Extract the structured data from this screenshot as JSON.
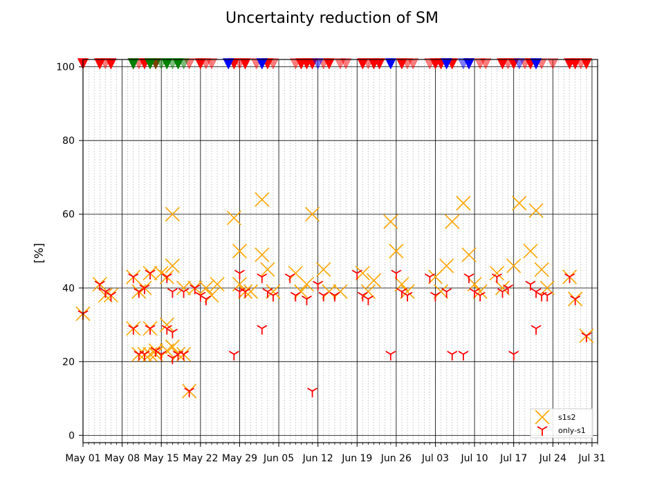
{
  "chart_data": {
    "type": "scatter",
    "title": "Uncertainty reduction of SM",
    "ylabel": "[%]",
    "xlabel": "",
    "xlim": [
      "2019-05-01",
      "2019-08-01"
    ],
    "ylim": [
      -2,
      102
    ],
    "yticks": [
      0,
      20,
      40,
      60,
      80,
      100
    ],
    "xticks": [
      {
        "date": "2019-05-01",
        "label": "May 01"
      },
      {
        "date": "2019-05-08",
        "label": "May 08"
      },
      {
        "date": "2019-05-15",
        "label": "May 15"
      },
      {
        "date": "2019-05-22",
        "label": "May 22"
      },
      {
        "date": "2019-05-29",
        "label": "May 29"
      },
      {
        "date": "2019-06-05",
        "label": "Jun 05"
      },
      {
        "date": "2019-06-12",
        "label": "Jun 12"
      },
      {
        "date": "2019-06-19",
        "label": "Jun 19"
      },
      {
        "date": "2019-06-26",
        "label": "Jun 26"
      },
      {
        "date": "2019-07-03",
        "label": "Jul 03"
      },
      {
        "date": "2019-07-10",
        "label": "Jul 10"
      },
      {
        "date": "2019-07-17",
        "label": "Jul 17"
      },
      {
        "date": "2019-07-24",
        "label": "Jul 24"
      },
      {
        "date": "2019-07-31",
        "label": "Jul 31"
      }
    ],
    "grid": true,
    "legend_position": "lower-right",
    "series": [
      {
        "name": "s1s2",
        "marker": "x",
        "color": "#FFA500",
        "points": [
          [
            "2019-05-01",
            33
          ],
          [
            "2019-05-04",
            41
          ],
          [
            "2019-05-05",
            38
          ],
          [
            "2019-05-06",
            38
          ],
          [
            "2019-05-10",
            43
          ],
          [
            "2019-05-10",
            29
          ],
          [
            "2019-05-11",
            39
          ],
          [
            "2019-05-11",
            22
          ],
          [
            "2019-05-12",
            40
          ],
          [
            "2019-05-12",
            22
          ],
          [
            "2019-05-13",
            44
          ],
          [
            "2019-05-13",
            29
          ],
          [
            "2019-05-13",
            22
          ],
          [
            "2019-05-14",
            23
          ],
          [
            "2019-05-14",
            22
          ],
          [
            "2019-05-15",
            44
          ],
          [
            "2019-05-16",
            43
          ],
          [
            "2019-05-16",
            30
          ],
          [
            "2019-05-16",
            23
          ],
          [
            "2019-05-17",
            60
          ],
          [
            "2019-05-17",
            46
          ],
          [
            "2019-05-17",
            24
          ],
          [
            "2019-05-18",
            22
          ],
          [
            "2019-05-19",
            40
          ],
          [
            "2019-05-19",
            22
          ],
          [
            "2019-05-20",
            12
          ],
          [
            "2019-05-21",
            40
          ],
          [
            "2019-05-23",
            40
          ],
          [
            "2019-05-24",
            38
          ],
          [
            "2019-05-25",
            41
          ],
          [
            "2019-05-28",
            59
          ],
          [
            "2019-05-29",
            50
          ],
          [
            "2019-05-29",
            41
          ],
          [
            "2019-05-30",
            39
          ],
          [
            "2019-05-31",
            39
          ],
          [
            "2019-06-02",
            64
          ],
          [
            "2019-06-02",
            49
          ],
          [
            "2019-06-03",
            45
          ],
          [
            "2019-06-04",
            39
          ],
          [
            "2019-06-08",
            44
          ],
          [
            "2019-06-09",
            39
          ],
          [
            "2019-06-10",
            41
          ],
          [
            "2019-06-11",
            60
          ],
          [
            "2019-06-13",
            45
          ],
          [
            "2019-06-14",
            39
          ],
          [
            "2019-06-16",
            39
          ],
          [
            "2019-06-20",
            44
          ],
          [
            "2019-06-21",
            39
          ],
          [
            "2019-06-22",
            42
          ],
          [
            "2019-06-25",
            58
          ],
          [
            "2019-06-26",
            50
          ],
          [
            "2019-06-27",
            41
          ],
          [
            "2019-06-28",
            39
          ],
          [
            "2019-07-03",
            43
          ],
          [
            "2019-07-04",
            39
          ],
          [
            "2019-07-05",
            46
          ],
          [
            "2019-07-06",
            58
          ],
          [
            "2019-07-08",
            63
          ],
          [
            "2019-07-09",
            49
          ],
          [
            "2019-07-10",
            41
          ],
          [
            "2019-07-11",
            39
          ],
          [
            "2019-07-14",
            44
          ],
          [
            "2019-07-15",
            40
          ],
          [
            "2019-07-17",
            46
          ],
          [
            "2019-07-18",
            63
          ],
          [
            "2019-07-20",
            50
          ],
          [
            "2019-07-21",
            61
          ],
          [
            "2019-07-22",
            45
          ],
          [
            "2019-07-23",
            40
          ],
          [
            "2019-07-27",
            43
          ],
          [
            "2019-07-28",
            37
          ],
          [
            "2019-07-30",
            27
          ]
        ]
      },
      {
        "name": "only-s1",
        "marker": "tri_down",
        "color": "#FF0000",
        "points": [
          [
            "2019-05-01",
            33
          ],
          [
            "2019-05-04",
            41
          ],
          [
            "2019-05-05",
            39
          ],
          [
            "2019-05-06",
            38
          ],
          [
            "2019-05-10",
            43
          ],
          [
            "2019-05-10",
            29
          ],
          [
            "2019-05-11",
            39
          ],
          [
            "2019-05-11",
            22
          ],
          [
            "2019-05-12",
            40
          ],
          [
            "2019-05-12",
            22
          ],
          [
            "2019-05-13",
            44
          ],
          [
            "2019-05-13",
            29
          ],
          [
            "2019-05-14",
            23
          ],
          [
            "2019-05-15",
            22
          ],
          [
            "2019-05-16",
            43
          ],
          [
            "2019-05-16",
            29
          ],
          [
            "2019-05-17",
            28
          ],
          [
            "2019-05-17",
            21
          ],
          [
            "2019-05-17",
            39
          ],
          [
            "2019-05-18",
            22
          ],
          [
            "2019-05-19",
            39
          ],
          [
            "2019-05-19",
            22
          ],
          [
            "2019-05-20",
            12
          ],
          [
            "2019-05-21",
            40
          ],
          [
            "2019-05-22",
            38
          ],
          [
            "2019-05-23",
            37
          ],
          [
            "2019-05-28",
            22
          ],
          [
            "2019-05-29",
            44
          ],
          [
            "2019-05-29",
            39
          ],
          [
            "2019-05-30",
            39
          ],
          [
            "2019-06-02",
            43
          ],
          [
            "2019-06-02",
            29
          ],
          [
            "2019-06-03",
            39
          ],
          [
            "2019-06-04",
            38
          ],
          [
            "2019-06-07",
            43
          ],
          [
            "2019-06-08",
            38
          ],
          [
            "2019-06-10",
            37
          ],
          [
            "2019-06-11",
            12
          ],
          [
            "2019-06-12",
            41
          ],
          [
            "2019-06-13",
            38
          ],
          [
            "2019-06-15",
            38
          ],
          [
            "2019-06-19",
            44
          ],
          [
            "2019-06-20",
            38
          ],
          [
            "2019-06-21",
            37
          ],
          [
            "2019-06-25",
            22
          ],
          [
            "2019-06-26",
            44
          ],
          [
            "2019-06-27",
            39
          ],
          [
            "2019-06-28",
            38
          ],
          [
            "2019-07-02",
            43
          ],
          [
            "2019-07-03",
            38
          ],
          [
            "2019-07-05",
            39
          ],
          [
            "2019-07-06",
            22
          ],
          [
            "2019-07-08",
            22
          ],
          [
            "2019-07-09",
            43
          ],
          [
            "2019-07-10",
            39
          ],
          [
            "2019-07-11",
            38
          ],
          [
            "2019-07-14",
            43
          ],
          [
            "2019-07-15",
            39
          ],
          [
            "2019-07-16",
            40
          ],
          [
            "2019-07-17",
            22
          ],
          [
            "2019-07-20",
            41
          ],
          [
            "2019-07-21",
            39
          ],
          [
            "2019-07-21",
            29
          ],
          [
            "2019-07-22",
            38
          ],
          [
            "2019-07-23",
            38
          ],
          [
            "2019-07-27",
            43
          ],
          [
            "2019-07-28",
            37
          ],
          [
            "2019-07-30",
            27
          ]
        ]
      }
    ],
    "top_markers": {
      "y": 100,
      "marker": "triangle_down",
      "groups": [
        {
          "color": "#FF0000",
          "alpha": 1.0,
          "dates": [
            "2019-05-01",
            "2019-05-04",
            "2019-05-06",
            "2019-05-10",
            "2019-05-12",
            "2019-05-14",
            "2019-05-22",
            "2019-05-28",
            "2019-05-30",
            "2019-06-03",
            "2019-06-09",
            "2019-06-10",
            "2019-06-11",
            "2019-06-14",
            "2019-06-20",
            "2019-06-22",
            "2019-06-23",
            "2019-06-27",
            "2019-07-03",
            "2019-07-04",
            "2019-07-06",
            "2019-07-09",
            "2019-07-15",
            "2019-07-17",
            "2019-07-20",
            "2019-07-27",
            "2019-07-28",
            "2019-07-30"
          ]
        },
        {
          "color": "#FF0000",
          "alpha": 0.5,
          "dates": [
            "2019-05-04",
            "2019-05-05",
            "2019-05-11",
            "2019-05-13",
            "2019-05-20",
            "2019-05-23",
            "2019-05-24",
            "2019-05-29",
            "2019-06-01",
            "2019-06-04",
            "2019-06-08",
            "2019-06-13",
            "2019-06-16",
            "2019-06-17",
            "2019-06-21",
            "2019-06-28",
            "2019-06-29",
            "2019-07-02",
            "2019-07-05",
            "2019-07-11",
            "2019-07-12",
            "2019-07-16",
            "2019-07-19",
            "2019-07-22",
            "2019-07-24",
            "2019-07-29"
          ]
        },
        {
          "color": "#0000FF",
          "alpha": 1.0,
          "dates": [
            "2019-05-27",
            "2019-06-02",
            "2019-06-25",
            "2019-07-05",
            "2019-07-09",
            "2019-07-21"
          ]
        },
        {
          "color": "#0000FF",
          "alpha": 0.5,
          "dates": [
            "2019-06-12",
            "2019-07-08",
            "2019-07-18"
          ]
        },
        {
          "color": "#008000",
          "alpha": 1.0,
          "dates": [
            "2019-05-10",
            "2019-05-13",
            "2019-05-16",
            "2019-05-18"
          ]
        },
        {
          "color": "#008000",
          "alpha": 0.5,
          "dates": [
            "2019-05-14",
            "2019-05-15",
            "2019-05-17",
            "2019-05-19"
          ]
        }
      ]
    }
  }
}
